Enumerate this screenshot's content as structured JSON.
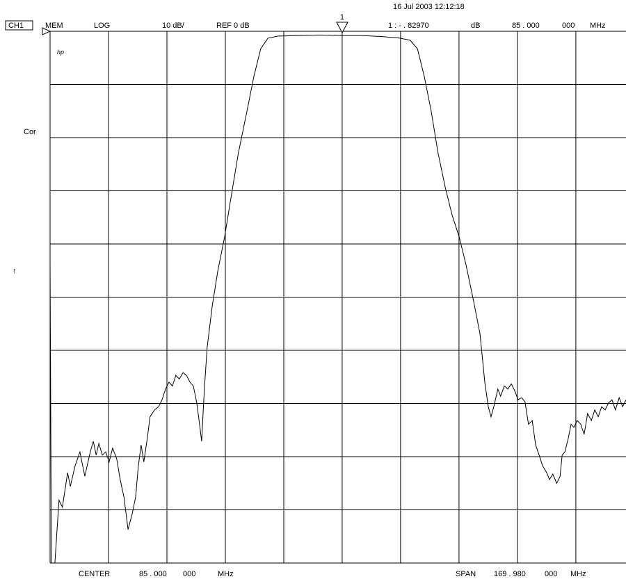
{
  "chart_data": {
    "type": "line",
    "header": {
      "channel": "CH1",
      "format": "MEM",
      "scale_type": "LOG",
      "scale": "10 dB/",
      "reference": "REF 0 dB",
      "timestamp": "16 Jul 2003  12:12:18",
      "marker_readout": "1 : - . 82970",
      "marker_unit": "dB",
      "marker_freq": "85 . 000",
      "marker_freq_fine": "000",
      "marker_freq_unit": "MHz"
    },
    "logo": "hp",
    "correction": "Cor",
    "arrow": "↑",
    "footer": {
      "center_label": "CENTER",
      "center": "85 . 000",
      "center_fine": "000",
      "center_unit": "MHz",
      "span_label": "SPAN",
      "span": "169 . 980",
      "span_fine": "000",
      "span_unit": "MHz"
    },
    "marker_label": "1",
    "marker_x": 85.0,
    "color": "#000000",
    "x": [
      0.0,
      0.4,
      1.4,
      2.6,
      3.6,
      5.1,
      5.9,
      7.3,
      8.7,
      10.1,
      11.7,
      12.6,
      13.4,
      14.2,
      15.2,
      16.2,
      17.2,
      18.2,
      19.4,
      20.4,
      21.5,
      22.7,
      23.9,
      24.9,
      25.7,
      26.5,
      27.3,
      28.3,
      29.1,
      30.4,
      31.6,
      32.6,
      33.6,
      34.6,
      35.6,
      36.6,
      37.6,
      38.7,
      39.7,
      40.7,
      41.7,
      42.7,
      43.5,
      44.1,
      44.9,
      45.7,
      47.2,
      48.8,
      50.8,
      52.8,
      54.8,
      57.3,
      59.3,
      61.3,
      63.4,
      66.4,
      72.5,
      78.5,
      85.0,
      90.7,
      96.7,
      101.8,
      104.8,
      106.9,
      108.9,
      110.9,
      112.9,
      115.0,
      117.0,
      119.0,
      121.0,
      123.1,
      125.1,
      126.5,
      127.5,
      128.3,
      129.1,
      130.3,
      131.1,
      132.2,
      133.2,
      134.2,
      135.2,
      136.2,
      137.2,
      138.2,
      139.2,
      140.3,
      141.3,
      142.3,
      143.3,
      144.5,
      145.3,
      146.3,
      147.4,
      148.4,
      149.0,
      149.8,
      150.8,
      151.6,
      152.4,
      153.4,
      154.4,
      155.4,
      156.4,
      157.5,
      158.5,
      159.5,
      160.5,
      161.5,
      162.5,
      163.5,
      164.5,
      165.6,
      166.6,
      167.6
    ],
    "values": [
      -43.8,
      -100,
      -100,
      -88.2,
      -89.5,
      -83.0,
      -85.6,
      -81.7,
      -79.1,
      -83.7,
      -79.1,
      -77.1,
      -79.7,
      -77.5,
      -79.7,
      -79.1,
      -81.0,
      -78.4,
      -80.4,
      -84.3,
      -87.6,
      -93.7,
      -90.8,
      -87.6,
      -81.7,
      -77.8,
      -81.0,
      -76.5,
      -72.5,
      -71.2,
      -70.6,
      -69.3,
      -67.3,
      -66.0,
      -66.7,
      -64.7,
      -65.4,
      -64.2,
      -64.7,
      -66.0,
      -66.7,
      -69.9,
      -73.9,
      -77.1,
      -67.3,
      -59.5,
      -51.6,
      -45.1,
      -38.6,
      -30.7,
      -22.9,
      -15.0,
      -8.5,
      -3.3,
      -1.3,
      -0.9,
      -0.8,
      -0.7,
      -0.8,
      -0.8,
      -1.0,
      -1.3,
      -1.7,
      -3.3,
      -8.5,
      -15.0,
      -22.9,
      -29.4,
      -34.6,
      -38.6,
      -43.8,
      -50.3,
      -56.9,
      -66.0,
      -70.6,
      -72.5,
      -70.6,
      -67.3,
      -68.6,
      -66.7,
      -67.3,
      -66.3,
      -67.6,
      -69.3,
      -68.9,
      -69.7,
      -73.9,
      -73.2,
      -77.8,
      -79.7,
      -81.7,
      -83.0,
      -84.3,
      -83.3,
      -85.0,
      -83.7,
      -79.7,
      -79.1,
      -76.5,
      -73.9,
      -74.5,
      -73.2,
      -73.9,
      -75.8,
      -71.9,
      -73.2,
      -71.2,
      -72.5,
      -70.6,
      -71.2,
      -69.9,
      -69.3,
      -71.2,
      -68.9,
      -70.6,
      -69.3
    ],
    "xlim": [
      0.01,
      169.99
    ],
    "xticks": [
      17.01,
      34.01,
      51.01,
      68.01,
      85.0,
      101.99,
      118.99,
      135.99,
      152.99
    ],
    "ylim": [
      -100,
      0
    ],
    "yticks": [
      -90,
      -80,
      -70,
      -60,
      -50,
      -40,
      -30,
      -20,
      -10,
      0
    ],
    "grid": true
  }
}
